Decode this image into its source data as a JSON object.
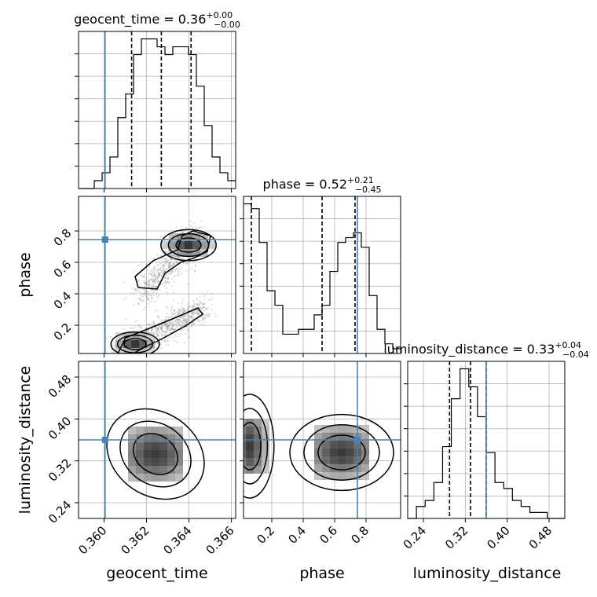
{
  "chart_data": {
    "type": "corner",
    "parameters": [
      "geocent_time",
      "phase",
      "luminosity_distance"
    ],
    "titles": {
      "geocent_time": {
        "name": "geocent_time",
        "value": "0.36",
        "plus": "+0.00",
        "minus": "−0.00"
      },
      "phase": {
        "name": "phase",
        "value": "0.52",
        "plus": "+0.21",
        "minus": "−0.45"
      },
      "luminosity_distance": {
        "name": "luminosity_distance",
        "value": "0.33",
        "plus": "+0.04",
        "minus": "−0.04"
      }
    },
    "axis_labels": {
      "geocent_time": "geocent_time",
      "phase": "phase",
      "luminosity_distance": "luminosity_distance"
    },
    "ranges": {
      "geocent_time": [
        0.3588,
        0.3662
      ],
      "phase": [
        0.02,
        1.02
      ],
      "luminosity_distance": [
        0.21,
        0.51
      ]
    },
    "ticks": {
      "geocent_time": [
        0.36,
        0.362,
        0.364,
        0.366
      ],
      "phase": [
        0.2,
        0.4,
        0.6,
        0.8
      ],
      "luminosity_distance": [
        0.24,
        0.32,
        0.4,
        0.48
      ]
    },
    "tick_labels": {
      "geocent_time": [
        "0.360",
        "0.362",
        "0.364",
        "0.366"
      ],
      "phase": [
        "0.2",
        "0.4",
        "0.6",
        "0.8"
      ],
      "luminosity_distance": [
        "0.24",
        "0.32",
        "0.40",
        "0.48"
      ]
    },
    "truths": {
      "geocent_time": 0.36005,
      "phase": 0.745,
      "luminosity_distance": 0.36
    },
    "quantiles": {
      "geocent_time": [
        0.3613,
        0.3627,
        0.3641
      ],
      "phase": [
        0.07,
        0.52,
        0.73
      ],
      "luminosity_distance": [
        0.29,
        0.33,
        0.36
      ]
    },
    "histograms": {
      "geocent_time": {
        "range": [
          0.3588,
          0.3662
        ],
        "counts": [
          0,
          0,
          1,
          2,
          4,
          9,
          12,
          17,
          19,
          19,
          18,
          17,
          18,
          18,
          17,
          13,
          8,
          4,
          2,
          1
        ]
      },
      "phase": {
        "range": [
          0.02,
          1.02
        ],
        "counts": [
          31,
          30,
          23,
          13,
          10,
          4,
          4,
          5,
          5,
          8,
          10,
          17,
          23,
          24,
          25,
          22,
          12,
          5,
          2,
          1
        ]
      },
      "luminosity_distance": {
        "range": [
          0.21,
          0.51
        ],
        "counts": [
          0,
          2,
          3,
          6,
          12,
          20,
          25,
          22,
          17,
          11,
          6,
          5,
          3,
          2,
          1,
          1,
          0,
          0
        ]
      }
    },
    "grid": true,
    "colors": {
      "truth": "#4682b4",
      "hist": "#000000",
      "contour": "#000000",
      "points": "#808080"
    }
  }
}
